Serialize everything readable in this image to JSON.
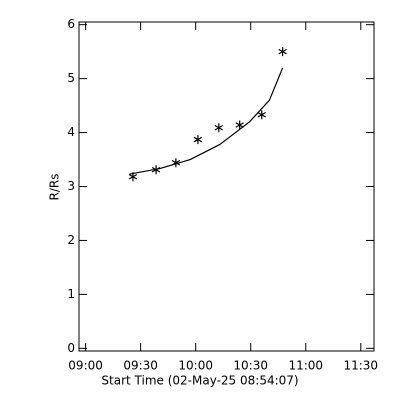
{
  "chart_data": {
    "type": "scatter",
    "xlabel": "Start Time (02-May-25 08:54:07)",
    "ylabel": "R/Rs",
    "xlim": [
      8.94,
      11.62
    ],
    "ylim": [
      -0.05,
      6.05
    ],
    "xticks": [
      {
        "value": 9,
        "label": "09:00"
      },
      {
        "value": 9.5,
        "label": "09:30"
      },
      {
        "value": 10,
        "label": "10:00"
      },
      {
        "value": 10.5,
        "label": "10:30"
      },
      {
        "value": 11,
        "label": "11:00"
      },
      {
        "value": 11.5,
        "label": "11:30"
      }
    ],
    "yticks": [
      0,
      1,
      2,
      3,
      4,
      5,
      6
    ],
    "series": [
      {
        "type": "scatter",
        "marker": "asterisk",
        "color": "#000000",
        "x": [
          9.43,
          9.64,
          9.82,
          10.02,
          10.21,
          10.4,
          10.6,
          10.79
        ],
        "values": [
          3.18,
          3.31,
          3.44,
          3.87,
          4.09,
          4.14,
          4.33,
          5.5
        ]
      },
      {
        "type": "line",
        "color": "#000000",
        "x": [
          9.4,
          9.67,
          9.95,
          10.22,
          10.49,
          10.67,
          10.79
        ],
        "values": [
          3.23,
          3.33,
          3.5,
          3.78,
          4.2,
          4.6,
          5.2
        ]
      }
    ]
  }
}
